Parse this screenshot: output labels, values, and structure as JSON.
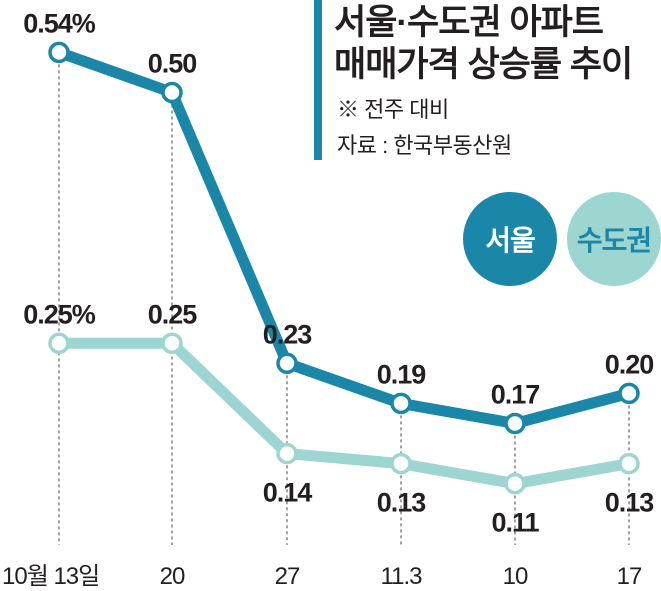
{
  "chart_data": {
    "type": "line",
    "title": "서울·수도권 아파트 매매가격 상승률 추이",
    "title_lines": [
      "서울·수도권 아파트",
      "매매가격 상승률 추이"
    ],
    "note": "※ 전주 대비",
    "source": "자료 : 한국부동산원",
    "categories": [
      "10월 13일",
      "20",
      "27",
      "11.3",
      "10",
      "17"
    ],
    "series": [
      {
        "name": "서울",
        "color": "#1a87a8",
        "values": [
          0.54,
          0.5,
          0.23,
          0.19,
          0.17,
          0.2
        ],
        "labels": [
          "0.54%",
          "0.50",
          "0.23",
          "0.19",
          "0.17",
          "0.20"
        ]
      },
      {
        "name": "수도권",
        "color": "#9dd5d1",
        "values": [
          0.25,
          0.25,
          0.14,
          0.13,
          0.11,
          0.13
        ],
        "labels": [
          "0.25%",
          "0.25",
          "0.14",
          "0.13",
          "0.11",
          "0.13"
        ]
      }
    ],
    "unit": "%",
    "legend": "top-right",
    "grid": false
  }
}
